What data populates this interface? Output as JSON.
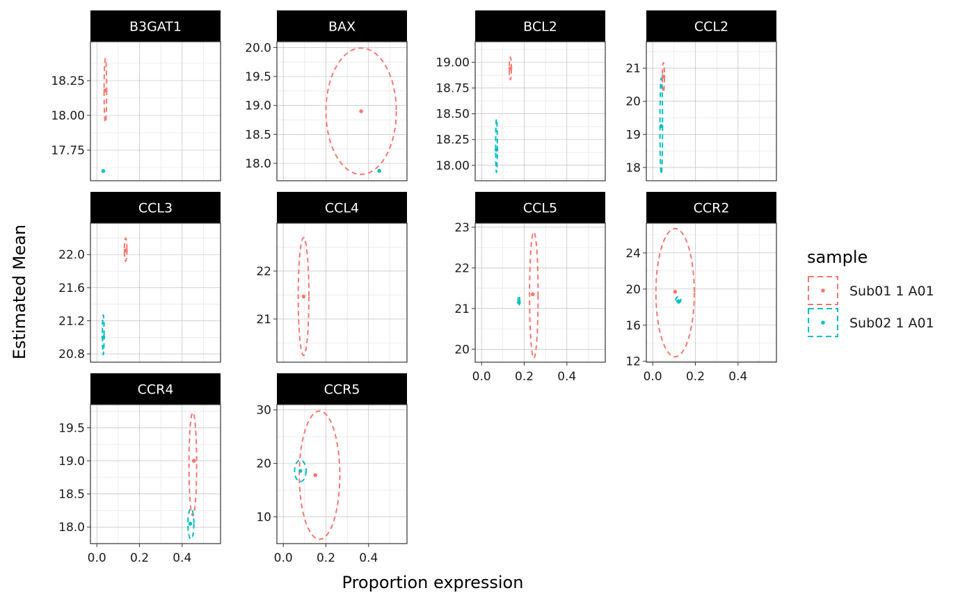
{
  "chart_data": {
    "type": "scatter",
    "title": "",
    "xlabel": "Proportion expression",
    "ylabel": "Estimated Mean",
    "legend": {
      "title": "sample",
      "placement": "right",
      "entries": [
        {
          "name": "Sub01 1 A01",
          "color": "#F8766D"
        },
        {
          "name": "Sub02 1 A01",
          "color": "#00BFC4"
        }
      ]
    },
    "x_axis": {
      "range": [
        -0.03,
        0.58
      ],
      "ticks": [
        0.0,
        0.2,
        0.4
      ],
      "tick_labels": [
        "0.0",
        "0.2",
        "0.4"
      ]
    },
    "grid": true,
    "facets": [
      {
        "label": "B3GAT1",
        "ylim": [
          17.53,
          18.53
        ],
        "yticks": [
          17.75,
          18.0,
          18.25
        ],
        "ytick_labels": [
          "17.75",
          "18.00",
          "18.25"
        ],
        "show_x": false,
        "series": [
          {
            "name": "Sub01 1 A01",
            "point": [
              0.04,
              18.18
            ],
            "ellipse": {
              "cx": 0.04,
              "cy": 18.18,
              "rx": 0.006,
              "ry": 0.23
            }
          },
          {
            "name": "Sub02 1 A01",
            "point": [
              0.03,
              17.6
            ],
            "ellipse": null
          }
        ]
      },
      {
        "label": "BAX",
        "ylim": [
          17.7,
          20.1
        ],
        "yticks": [
          18.0,
          18.5,
          19.0,
          19.5,
          20.0
        ],
        "ytick_labels": [
          "18.0",
          "18.5",
          "19.0",
          "19.5",
          "20.0"
        ],
        "show_x": false,
        "series": [
          {
            "name": "Sub01 1 A01",
            "point": [
              0.365,
              18.9
            ],
            "ellipse": {
              "cx": 0.365,
              "cy": 18.9,
              "rx": 0.165,
              "ry": 1.09
            }
          },
          {
            "name": "Sub02 1 A01",
            "point": [
              0.45,
              17.87
            ],
            "ellipse": null
          }
        ]
      },
      {
        "label": "BCL2",
        "ylim": [
          17.85,
          19.2
        ],
        "yticks": [
          18.0,
          18.25,
          18.5,
          18.75,
          19.0
        ],
        "ytick_labels": [
          "18.00",
          "18.25",
          "18.50",
          "18.75",
          "19.00"
        ],
        "show_x": false,
        "series": [
          {
            "name": "Sub01 1 A01",
            "point": [
              0.135,
              18.94
            ],
            "ellipse": {
              "cx": 0.135,
              "cy": 18.94,
              "rx": 0.005,
              "ry": 0.11
            }
          },
          {
            "name": "Sub02 1 A01",
            "point": [
              0.07,
              18.15
            ],
            "ellipse": {
              "cx": 0.07,
              "cy": 18.19,
              "rx": 0.004,
              "ry": 0.26
            }
          }
        ]
      },
      {
        "label": "CCL2",
        "ylim": [
          17.6,
          21.8
        ],
        "yticks": [
          18,
          19,
          20,
          21
        ],
        "ytick_labels": [
          "18",
          "19",
          "20",
          "21"
        ],
        "show_x": false,
        "series": [
          {
            "name": "Sub01 1 A01",
            "point": [
              0.05,
              20.75
            ],
            "ellipse": {
              "cx": 0.05,
              "cy": 20.72,
              "rx": 0.005,
              "ry": 0.45
            }
          },
          {
            "name": "Sub02 1 A01",
            "point": [
              0.04,
              19.25
            ],
            "ellipse": {
              "cx": 0.04,
              "cy": 19.25,
              "rx": 0.006,
              "ry": 1.45
            }
          }
        ]
      },
      {
        "label": "CCL3",
        "ylim": [
          20.7,
          22.38
        ],
        "yticks": [
          20.8,
          21.2,
          21.6,
          22.0
        ],
        "ytick_labels": [
          "20.8",
          "21.2",
          "21.6",
          "22.0"
        ],
        "show_x": false,
        "series": [
          {
            "name": "Sub01 1 A01",
            "point": [
              0.135,
              22.05
            ],
            "ellipse": {
              "cx": 0.135,
              "cy": 22.06,
              "rx": 0.006,
              "ry": 0.14
            }
          },
          {
            "name": "Sub02 1 A01",
            "point": [
              0.03,
              21.0
            ],
            "ellipse": {
              "cx": 0.03,
              "cy": 21.03,
              "rx": 0.004,
              "ry": 0.24
            }
          }
        ]
      },
      {
        "label": "CCL4",
        "ylim": [
          20.1,
          23.0
        ],
        "yticks": [
          21,
          22
        ],
        "ytick_labels": [
          "21",
          "22"
        ],
        "show_x": false,
        "series": [
          {
            "name": "Sub01 1 A01",
            "point": [
              0.095,
              21.47
            ],
            "ellipse": {
              "cx": 0.095,
              "cy": 21.47,
              "rx": 0.025,
              "ry": 1.23
            }
          }
        ]
      },
      {
        "label": "CCL5",
        "ylim": [
          19.68,
          23.1
        ],
        "yticks": [
          20,
          21,
          22,
          23
        ],
        "ytick_labels": [
          "20",
          "21",
          "22",
          "23"
        ],
        "show_x": true,
        "series": [
          {
            "name": "Sub01 1 A01",
            "point": [
              0.24,
              21.35
            ],
            "ellipse": {
              "cx": 0.245,
              "cy": 21.33,
              "rx": 0.02,
              "ry": 1.55
            }
          },
          {
            "name": "Sub02 1 A01",
            "point": [
              0.175,
              21.15
            ],
            "ellipse": {
              "cx": 0.175,
              "cy": 21.2,
              "rx": 0.004,
              "ry": 0.12
            }
          }
        ]
      },
      {
        "label": "CCR2",
        "ylim": [
          11.9,
          27.3
        ],
        "yticks": [
          12,
          16,
          20,
          24
        ],
        "ytick_labels": [
          "12",
          "16",
          "20",
          "24"
        ],
        "show_x": true,
        "series": [
          {
            "name": "Sub01 1 A01",
            "point": [
              0.105,
              19.7
            ],
            "ellipse": {
              "cx": 0.105,
              "cy": 19.6,
              "rx": 0.09,
              "ry": 7.1
            }
          },
          {
            "name": "Sub02 1 A01",
            "point": [
              0.12,
              18.65
            ],
            "ellipse": {
              "cx": 0.12,
              "cy": 18.8,
              "rx": 0.012,
              "ry": 0.35
            }
          }
        ]
      },
      {
        "label": "CCR4",
        "ylim": [
          17.75,
          19.85
        ],
        "yticks": [
          18.0,
          18.5,
          19.0,
          19.5
        ],
        "ytick_labels": [
          "18.0",
          "18.5",
          "19.0",
          "19.5"
        ],
        "show_x": true,
        "series": [
          {
            "name": "Sub01 1 A01",
            "point": [
              0.455,
              19.0
            ],
            "ellipse": {
              "cx": 0.45,
              "cy": 18.95,
              "rx": 0.018,
              "ry": 0.78
            }
          },
          {
            "name": "Sub02 1 A01",
            "point": [
              0.438,
              18.05
            ],
            "ellipse": {
              "cx": 0.441,
              "cy": 18.05,
              "rx": 0.014,
              "ry": 0.23
            }
          }
        ]
      },
      {
        "label": "CCR5",
        "ylim": [
          5.0,
          31.0
        ],
        "yticks": [
          10,
          20,
          30
        ],
        "ytick_labels": [
          "10",
          "20",
          "30"
        ],
        "show_x": true,
        "series": [
          {
            "name": "Sub01 1 A01",
            "point": [
              0.15,
              17.8
            ],
            "ellipse": {
              "cx": 0.17,
              "cy": 17.8,
              "rx": 0.095,
              "ry": 12.0
            }
          },
          {
            "name": "Sub02 1 A01",
            "point": [
              0.08,
              18.6
            ],
            "ellipse": {
              "cx": 0.08,
              "cy": 18.6,
              "rx": 0.027,
              "ry": 2.0
            }
          }
        ]
      }
    ]
  }
}
